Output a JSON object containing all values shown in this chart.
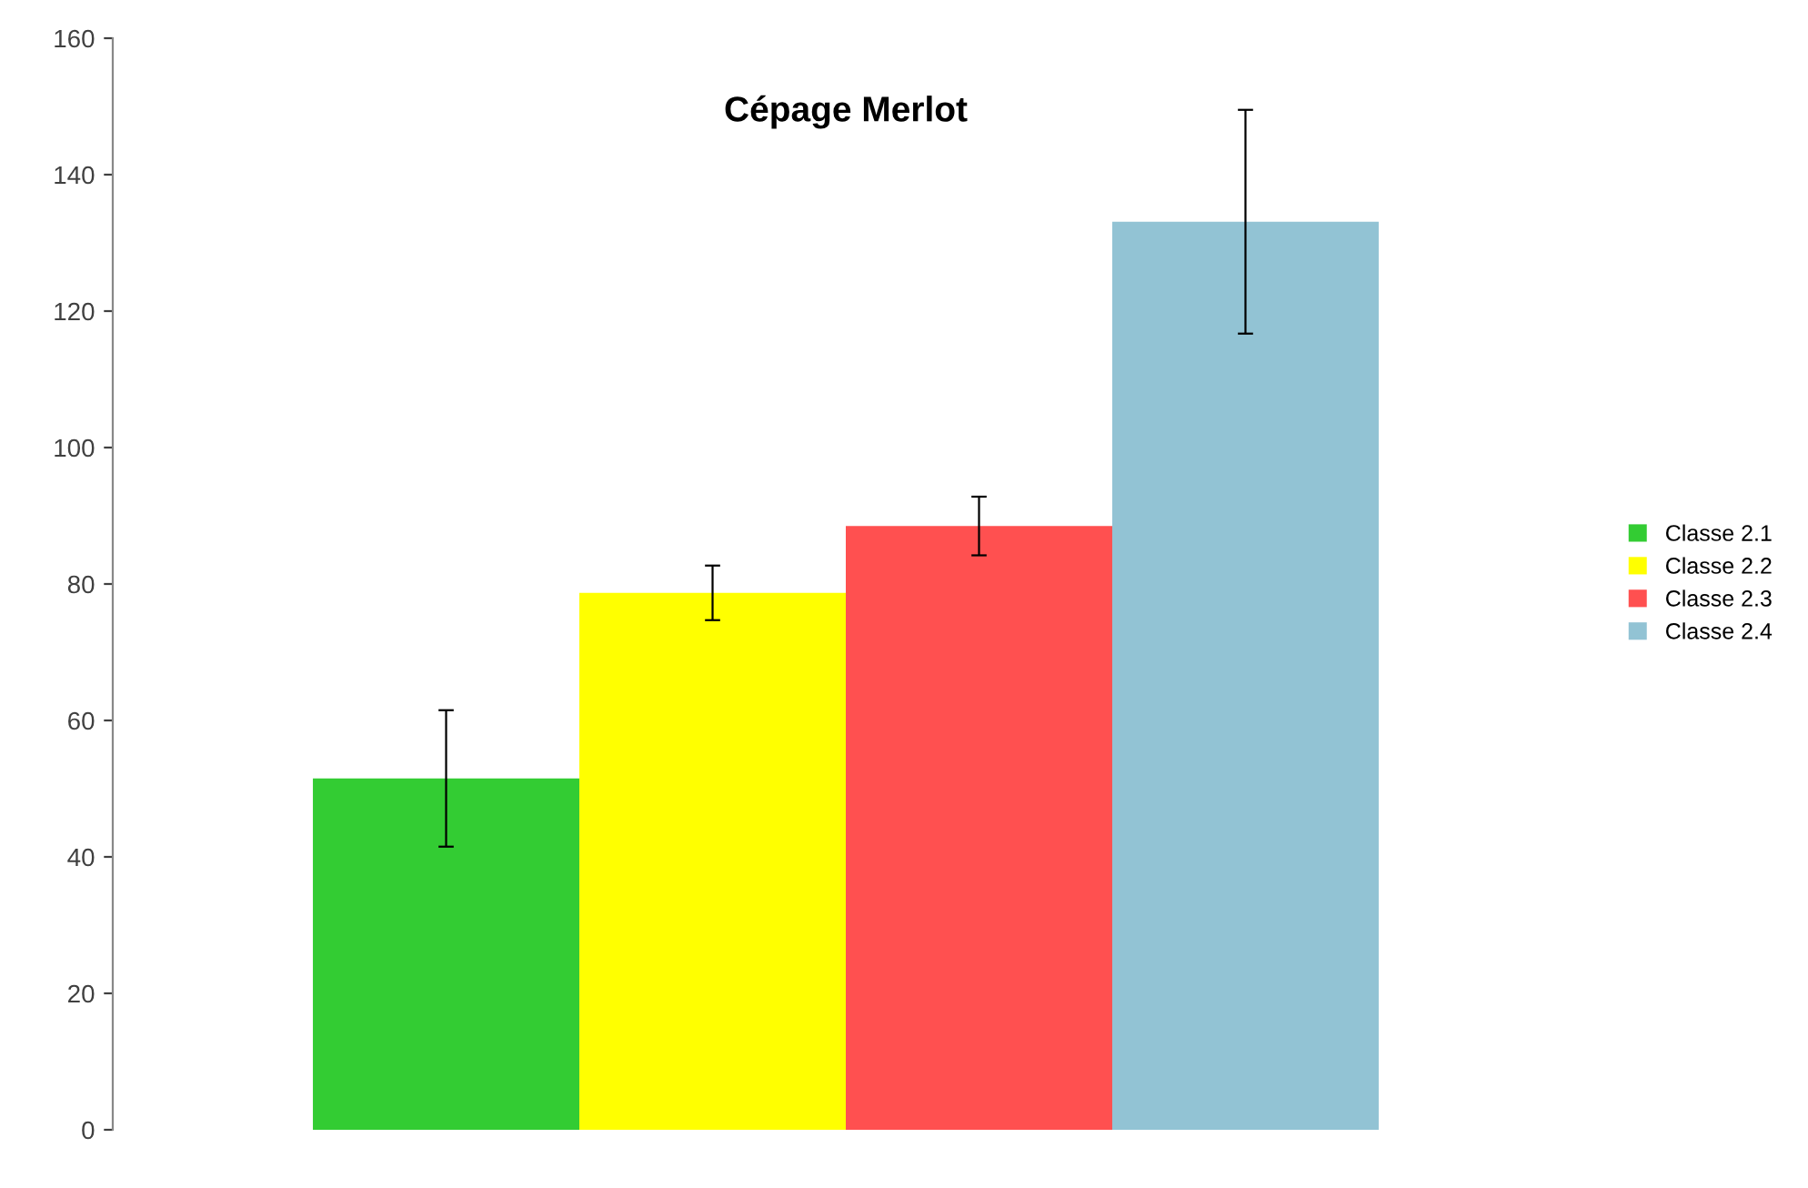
{
  "chart_data": {
    "type": "bar",
    "title": "Cépage Merlot",
    "categories": [
      null
    ],
    "series": [
      {
        "name": "Classe 2.1",
        "color": "#33cc33",
        "values": [
          51.5
        ],
        "errors": [
          10
        ]
      },
      {
        "name": "Classe 2.2",
        "color": "#ffff00",
        "values": [
          78.7
        ],
        "errors": [
          4
        ]
      },
      {
        "name": "Classe 2.3",
        "color": "#ff5050",
        "values": [
          88.5
        ],
        "errors": [
          4.3
        ]
      },
      {
        "name": "Classe 2.4",
        "color": "#92c3d4",
        "values": [
          133.1
        ],
        "errors": [
          16.4
        ]
      }
    ],
    "ylim": [
      0,
      160
    ],
    "yticks": [
      0,
      20,
      40,
      60,
      80,
      100,
      120,
      140,
      160
    ],
    "grid": false,
    "legend": "right",
    "tick_labels": "y"
  }
}
